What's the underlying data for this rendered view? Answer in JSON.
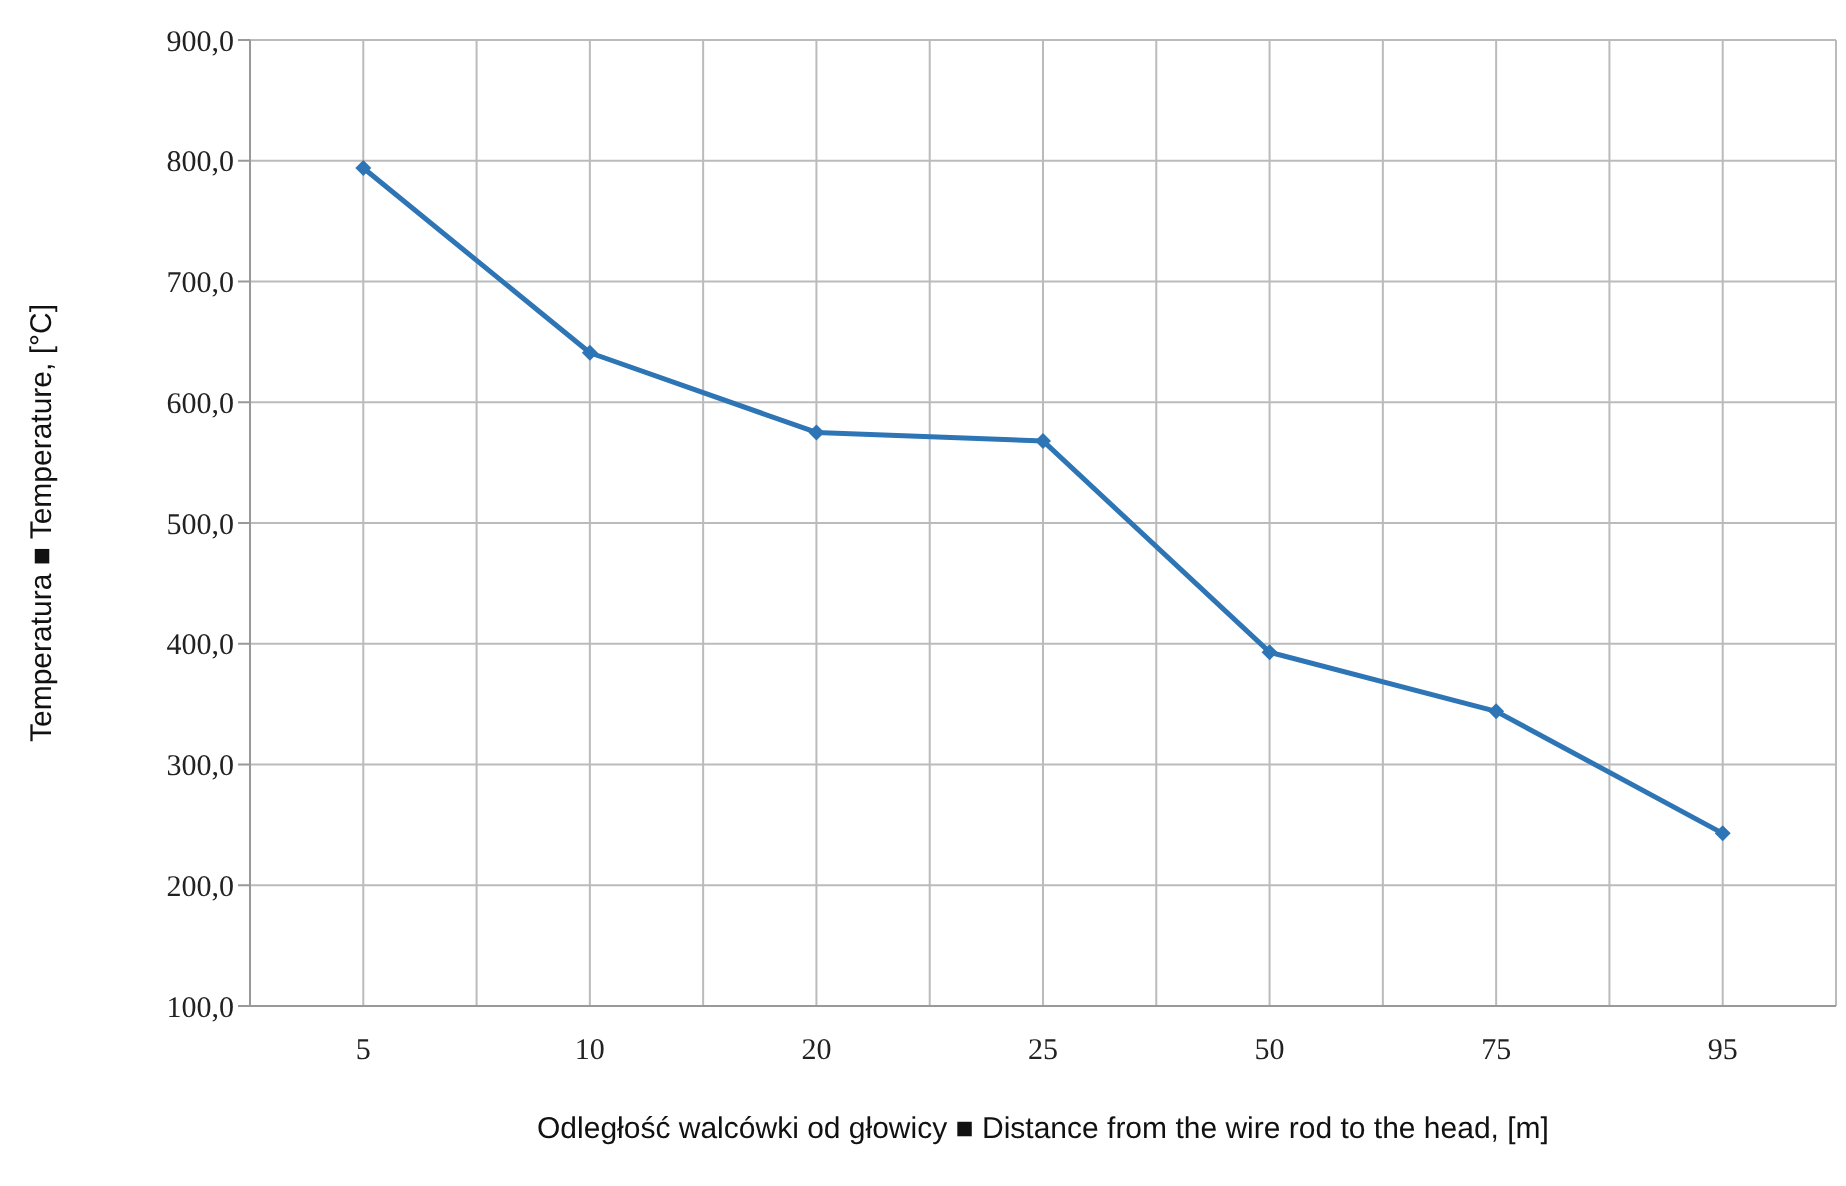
{
  "chart_data": {
    "type": "line",
    "xlabel": "Odległość walcówki od głowicy ■ Distance from the wire rod to the head, [m]",
    "ylabel": "Temperatura ■ Temperature, [°C]",
    "categories": [
      "5",
      "10",
      "20",
      "25",
      "50",
      "75",
      "95"
    ],
    "series": [
      {
        "color": "#2e75b6",
        "values": [
          794,
          641,
          575,
          568,
          393,
          344,
          243
        ]
      }
    ],
    "ylim": [
      100,
      900
    ],
    "yticks": [
      {
        "value": 100,
        "label": "100,0"
      },
      {
        "value": 200,
        "label": "200,0"
      },
      {
        "value": 300,
        "label": "300,0"
      },
      {
        "value": 400,
        "label": "400,0"
      },
      {
        "value": 500,
        "label": "500,0"
      },
      {
        "value": 600,
        "label": "600,0"
      },
      {
        "value": 700,
        "label": "700,0"
      },
      {
        "value": 800,
        "label": "800,0"
      },
      {
        "value": 900,
        "label": "900,0"
      }
    ],
    "grid": true,
    "marker": "diamond",
    "line_style": "solid",
    "legend": false
  }
}
